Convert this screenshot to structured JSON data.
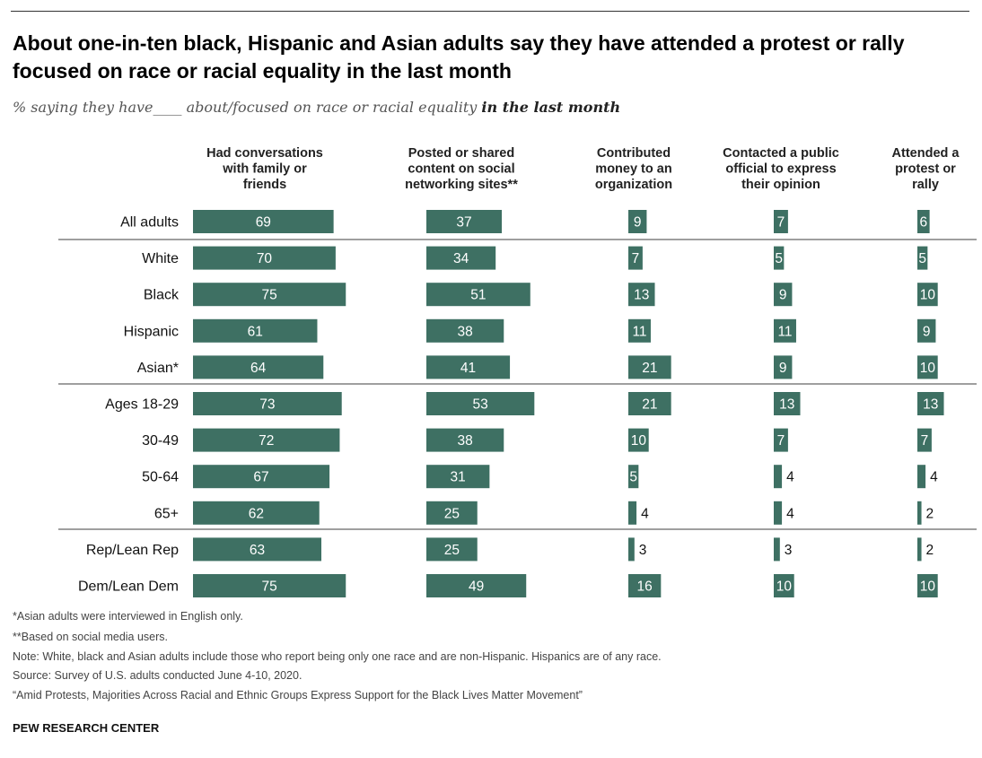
{
  "title": "About one-in-ten black, Hispanic and Asian adults say they have attended a protest or rally focused on race or racial equality in the last month",
  "subtitle_pre": "% saying they have____ about/focused on race or racial equality ",
  "subtitle_emph": "in the last month",
  "notes": [
    "*Asian adults were interviewed in English only.",
    "**Based on social media users.",
    "Note: White, black and Asian adults include those who report being only one race and are non-Hispanic. Hispanics are of any race.",
    "Source: Survey of U.S. adults conducted June 4-10, 2020.",
    "“Amid Protests, Majorities Across Racial and Ethnic Groups Express Support for the Black Lives Matter Movement”"
  ],
  "source_org": "PEW RESEARCH CENTER",
  "colors": {
    "bar": "#3e7063"
  },
  "chart_data": {
    "type": "bar",
    "orientation": "horizontal",
    "categories": [
      "All adults",
      "White",
      "Black",
      "Hispanic",
      "Asian*",
      "Ages 18-29",
      "30-49",
      "50-64",
      "65+",
      "Rep/Lean Rep",
      "Dem/Lean Dem"
    ],
    "groups": [
      [
        "All adults"
      ],
      [
        "White",
        "Black",
        "Hispanic",
        "Asian*"
      ],
      [
        "Ages 18-29",
        "30-49",
        "50-64",
        "65+"
      ],
      [
        "Rep/Lean Rep",
        "Dem/Lean Dem"
      ]
    ],
    "unit": "%",
    "series": [
      {
        "name": "Had conversations with family or friends",
        "header_lines": [
          "Had conversations",
          "with family or",
          "friends"
        ],
        "values": [
          69,
          70,
          75,
          61,
          64,
          73,
          72,
          67,
          62,
          63,
          75
        ]
      },
      {
        "name": "Posted or shared content on social networking sites**",
        "header_lines": [
          "Posted or shared",
          "content on social",
          "networking sites**"
        ],
        "values": [
          37,
          34,
          51,
          38,
          41,
          53,
          38,
          31,
          25,
          25,
          49
        ]
      },
      {
        "name": "Contributed money to an organization",
        "header_lines": [
          "Contributed",
          "money to an",
          "organization"
        ],
        "values": [
          9,
          7,
          13,
          11,
          21,
          21,
          10,
          5,
          4,
          3,
          16
        ]
      },
      {
        "name": "Contacted a public official to express their opinion",
        "header_lines": [
          "Contacted a public",
          "official to express",
          "their opinion"
        ],
        "values": [
          7,
          5,
          9,
          11,
          9,
          13,
          7,
          4,
          4,
          3,
          10
        ]
      },
      {
        "name": "Attended a protest or rally",
        "header_lines": [
          "Attended a",
          "protest or",
          "rally"
        ],
        "values": [
          6,
          5,
          10,
          9,
          10,
          13,
          7,
          4,
          2,
          2,
          10
        ]
      }
    ]
  }
}
